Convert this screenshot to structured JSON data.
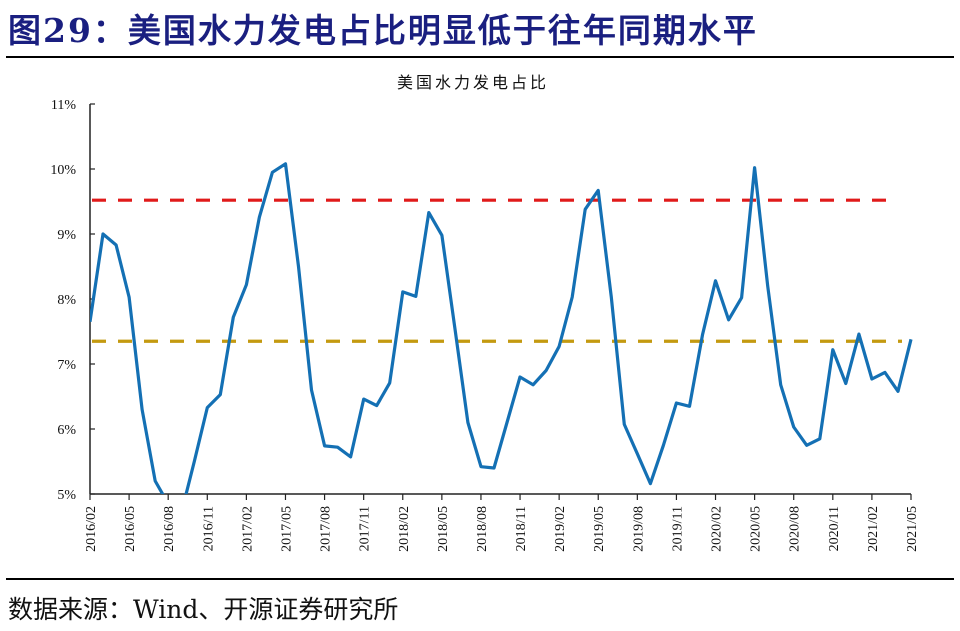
{
  "figure": {
    "title": "图29：美国水力发电占比明显低于往年同期水平",
    "source": "数据来源：Wind、开源证券研究所"
  },
  "colors": {
    "title": "#1a1f80",
    "series": "#1470b4",
    "upper_ref": "#e01a1a",
    "lower_ref": "#c49a10"
  },
  "chart_data": {
    "type": "line",
    "title": "美国水力发电占比",
    "xlabel": "",
    "ylabel": "",
    "ylim": [
      5,
      11
    ],
    "y_unit": "%",
    "yticks": [
      "5%",
      "6%",
      "7%",
      "8%",
      "9%",
      "10%",
      "11%"
    ],
    "xticks": [
      "2016/02",
      "2016/05",
      "2016/08",
      "2016/11",
      "2017/02",
      "2017/05",
      "2017/08",
      "2017/11",
      "2018/02",
      "2018/05",
      "2018/08",
      "2018/11",
      "2019/02",
      "2019/05",
      "2019/08",
      "2019/11",
      "2020/02",
      "2020/05",
      "2020/08",
      "2020/11",
      "2021/02",
      "2021/05"
    ],
    "grid": false,
    "legend": "none",
    "x": [
      "2016/02",
      "2016/03",
      "2016/04",
      "2016/05",
      "2016/06",
      "2016/07",
      "2016/08",
      "2016/09",
      "2016/10",
      "2016/11",
      "2016/12",
      "2017/01",
      "2017/02",
      "2017/03",
      "2017/04",
      "2017/05",
      "2017/06",
      "2017/07",
      "2017/08",
      "2017/09",
      "2017/10",
      "2017/11",
      "2017/12",
      "2018/01",
      "2018/02",
      "2018/03",
      "2018/04",
      "2018/05",
      "2018/06",
      "2018/07",
      "2018/08",
      "2018/09",
      "2018/10",
      "2018/11",
      "2018/12",
      "2019/01",
      "2019/02",
      "2019/03",
      "2019/04",
      "2019/05",
      "2019/06",
      "2019/07",
      "2019/08",
      "2019/09",
      "2019/10",
      "2019/11",
      "2019/12",
      "2020/01",
      "2020/02",
      "2020/03",
      "2020/04",
      "2020/05",
      "2020/06",
      "2020/07",
      "2020/08",
      "2020/09",
      "2020/10",
      "2020/11",
      "2020/12",
      "2021/01",
      "2021/02",
      "2021/03",
      "2021/04",
      "2021/05"
    ],
    "series": [
      {
        "name": "美国水力发电占比",
        "values": [
          7.65,
          9.0,
          8.83,
          8.03,
          6.3,
          5.2,
          4.85,
          4.7,
          5.5,
          6.33,
          6.53,
          7.72,
          8.22,
          9.26,
          9.95,
          10.08,
          8.5,
          6.6,
          5.74,
          5.72,
          5.57,
          6.46,
          6.36,
          6.71,
          8.11,
          8.04,
          9.33,
          8.98,
          7.55,
          6.1,
          5.42,
          5.4,
          6.1,
          6.8,
          6.68,
          6.9,
          7.27,
          8.03,
          9.38,
          9.67,
          8.03,
          6.07,
          5.62,
          5.16,
          5.75,
          6.4,
          6.35,
          7.45,
          8.28,
          7.68,
          8.02,
          10.02,
          8.2,
          6.68,
          6.03,
          5.75,
          5.85,
          7.22,
          6.7,
          7.46,
          6.77,
          6.87,
          6.58,
          7.38
        ]
      }
    ],
    "reference_lines": [
      {
        "name": "upper-reference",
        "value": 9.52,
        "style": "dashed"
      },
      {
        "name": "lower-reference",
        "value": 7.35,
        "style": "dashed"
      }
    ]
  }
}
